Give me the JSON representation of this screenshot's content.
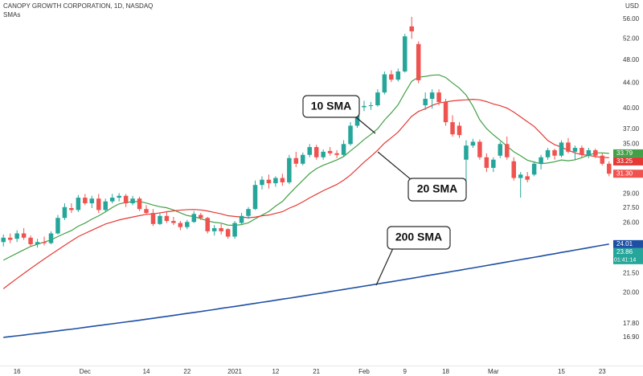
{
  "chart_data": {
    "type": "candlestick",
    "title": "CANOPY GROWTH CORPORATION, 1D, NASDAQ",
    "subtitle": "SMAs",
    "currency": "USD",
    "log_scale": true,
    "grid": false,
    "up_color": "#26a69a",
    "down_color": "#ef5350",
    "categories": [
      null,
      null,
      "16",
      null,
      null,
      null,
      null,
      null,
      null,
      null,
      null,
      null,
      "Dec",
      null,
      null,
      null,
      null,
      null,
      null,
      null,
      null,
      "14",
      null,
      null,
      null,
      null,
      null,
      "22",
      null,
      null,
      null,
      null,
      null,
      null,
      "2021",
      null,
      null,
      null,
      null,
      null,
      "12",
      null,
      null,
      null,
      null,
      null,
      "21",
      null,
      null,
      null,
      null,
      null,
      null,
      "Feb",
      null,
      null,
      null,
      null,
      null,
      "9",
      null,
      null,
      null,
      null,
      null,
      "18",
      null,
      null,
      null,
      null,
      null,
      null,
      "Mar",
      null,
      null,
      null,
      null,
      null,
      null,
      null,
      null,
      null,
      "15",
      null,
      null,
      null,
      null,
      null,
      "23",
      null
    ],
    "open": [
      24.2,
      24.6,
      24.5,
      25.0,
      24.6,
      24.0,
      24.2,
      24.1,
      25.0,
      26.5,
      27.5,
      27.3,
      28.6,
      28.0,
      28.5,
      27.3,
      28.2,
      28.6,
      28.8,
      28.0,
      28.5,
      27.4,
      27.0,
      25.9,
      26.7,
      26.2,
      26.0,
      25.6,
      26.1,
      26.8,
      26.5,
      25.2,
      25.5,
      25.4,
      24.7,
      26.0,
      26.7,
      27.4,
      30.0,
      30.6,
      30.2,
      30.8,
      30.3,
      33.2,
      32.5,
      33.6,
      34.6,
      33.3,
      34.1,
      33.8,
      33.6,
      35.0,
      37.5,
      40.2,
      40.4,
      40.5,
      42.5,
      45.5,
      44.6,
      46.0,
      54.5,
      51.0,
      40.5,
      41.5,
      42.5,
      41.0,
      38.0,
      37.5,
      33.0,
      34.8,
      35.3,
      33.3,
      32.0,
      33.5,
      35.0,
      32.8,
      30.8,
      31.0,
      31.2,
      32.5,
      33.3,
      34.2,
      33.5,
      35.2,
      34.0,
      34.5,
      33.6,
      34.2,
      33.5,
      32.5
    ],
    "high": [
      24.9,
      25.0,
      25.3,
      25.5,
      24.8,
      24.5,
      24.7,
      25.2,
      26.8,
      28.0,
      28.0,
      28.9,
      29.0,
      28.8,
      29.0,
      28.5,
      29.0,
      29.1,
      29.0,
      28.8,
      28.7,
      27.8,
      27.4,
      27.0,
      27.2,
      26.6,
      26.2,
      26.3,
      27.2,
      27.0,
      26.6,
      25.8,
      25.9,
      25.5,
      26.2,
      27.0,
      27.6,
      30.5,
      31.0,
      31.2,
      31.0,
      31.3,
      33.6,
      34.0,
      33.9,
      35.0,
      34.9,
      34.3,
      34.6,
      34.2,
      35.5,
      38.0,
      40.5,
      41.2,
      41.0,
      43.0,
      46.0,
      46.2,
      46.5,
      53.0,
      56.5,
      51.5,
      42.5,
      43.0,
      43.0,
      41.5,
      39.0,
      38.0,
      35.5,
      35.7,
      35.6,
      33.8,
      33.3,
      35.3,
      36.0,
      33.3,
      31.5,
      31.5,
      32.8,
      33.6,
      34.5,
      34.4,
      35.5,
      35.8,
      34.8,
      34.8,
      34.5,
      34.4,
      33.8,
      32.8
    ],
    "low": [
      23.8,
      24.1,
      24.2,
      24.4,
      23.8,
      23.7,
      23.9,
      24.0,
      24.9,
      26.3,
      27.0,
      27.1,
      27.8,
      27.5,
      27.0,
      27.1,
      28.0,
      28.2,
      27.6,
      27.8,
      27.2,
      26.8,
      25.7,
      25.8,
      26.0,
      25.8,
      25.3,
      25.4,
      26.0,
      26.3,
      25.0,
      24.8,
      24.9,
      24.5,
      24.5,
      25.8,
      26.4,
      27.3,
      29.5,
      29.6,
      29.8,
      29.9,
      30.1,
      32.1,
      32.3,
      33.3,
      33.0,
      33.0,
      33.5,
      33.2,
      33.4,
      34.8,
      37.2,
      39.6,
      39.8,
      40.3,
      42.2,
      44.2,
      44.3,
      45.8,
      52.0,
      44.0,
      39.8,
      40.0,
      40.5,
      37.5,
      36.0,
      35.8,
      29.8,
      34.5,
      33.0,
      31.5,
      31.5,
      33.2,
      33.0,
      30.5,
      28.6,
      30.3,
      31.0,
      31.8,
      33.0,
      33.0,
      33.3,
      33.8,
      33.0,
      33.3,
      33.2,
      33.2,
      32.3,
      31.0
    ],
    "close": [
      24.6,
      24.4,
      25.0,
      24.6,
      24.0,
      24.2,
      24.1,
      25.0,
      26.5,
      27.6,
      27.3,
      28.6,
      28.0,
      28.5,
      27.3,
      28.2,
      28.6,
      28.8,
      28.0,
      28.5,
      27.4,
      27.0,
      25.9,
      26.7,
      26.2,
      26.0,
      25.6,
      26.1,
      26.9,
      26.5,
      25.2,
      25.5,
      25.2,
      24.7,
      26.0,
      26.7,
      27.4,
      30.0,
      30.6,
      30.2,
      30.8,
      30.3,
      33.2,
      32.5,
      33.6,
      34.6,
      33.3,
      34.0,
      33.8,
      33.6,
      35.0,
      37.5,
      40.2,
      40.4,
      40.5,
      42.5,
      45.5,
      44.6,
      46.0,
      52.5,
      53.5,
      44.5,
      41.5,
      42.5,
      41.0,
      38.0,
      36.3,
      36.2,
      34.8,
      35.3,
      33.3,
      32.0,
      33.0,
      35.0,
      33.3,
      30.8,
      31.2,
      30.6,
      32.5,
      33.3,
      34.2,
      33.5,
      35.2,
      34.0,
      34.5,
      33.6,
      34.2,
      33.5,
      32.5,
      31.3
    ],
    "series": [
      {
        "name": "10 SMA",
        "color": "#43a047",
        "values": [
          22.6,
          22.9,
          23.2,
          23.5,
          23.8,
          24.0,
          24.2,
          24.4,
          24.7,
          25.0,
          25.27,
          25.69,
          25.99,
          26.38,
          26.71,
          27.11,
          27.56,
          27.94,
          28.09,
          28.18,
          28.19,
          28.03,
          27.82,
          27.64,
          27.53,
          27.31,
          27.01,
          26.74,
          26.63,
          26.43,
          26.21,
          26.06,
          25.99,
          25.79,
          25.77,
          25.84,
          26.02,
          26.41,
          26.78,
          27.15,
          27.71,
          28.19,
          28.99,
          29.77,
          30.53,
          31.32,
          31.91,
          32.31,
          32.63,
          32.97,
          33.39,
          34.11,
          34.81,
          35.6,
          36.29,
          37.08,
          38.3,
          39.36,
          40.58,
          42.47,
          44.32,
          45.02,
          45.15,
          45.36,
          45.41,
          44.96,
          44.04,
          43.2,
          42.08,
          40.36,
          38.34,
          37.09,
          36.24,
          35.49,
          34.72,
          34.0,
          33.49,
          32.93,
          32.7,
          32.5,
          32.59,
          32.74,
          32.96,
          32.86,
          32.98,
          33.26,
          33.56,
          33.85,
          33.85,
          33.79
        ]
      },
      {
        "name": "20 SMA",
        "color": "#e53935",
        "values": [
          20.3,
          20.7,
          21.1,
          21.5,
          21.9,
          22.3,
          22.7,
          23.1,
          23.5,
          23.9,
          24.3,
          24.7,
          25.0,
          25.3,
          25.6,
          25.9,
          26.1,
          26.3,
          26.45,
          26.59,
          26.73,
          26.86,
          26.91,
          27.01,
          27.12,
          27.21,
          27.29,
          27.34,
          27.36,
          27.31,
          27.2,
          27.05,
          26.91,
          26.72,
          26.65,
          26.58,
          26.52,
          26.58,
          26.71,
          26.79,
          26.96,
          27.13,
          27.49,
          27.78,
          28.15,
          28.58,
          28.97,
          29.36,
          29.71,
          30.06,
          30.55,
          31.15,
          31.9,
          32.69,
          33.41,
          34.2,
          35.11,
          35.84,
          36.61,
          37.72,
          38.86,
          39.57,
          39.98,
          40.48,
          40.85,
          41.02,
          41.17,
          41.28,
          41.33,
          41.42,
          41.33,
          41.06,
          40.7,
          40.43,
          40.07,
          39.48,
          38.77,
          38.07,
          37.39,
          36.43,
          35.47,
          34.92,
          34.6,
          34.18,
          33.85,
          33.63,
          33.53,
          33.39,
          33.28,
          33.25
        ]
      },
      {
        "name": "200 SMA",
        "color": "#1e4fa3",
        "values": [
          16.9,
          16.95,
          17.0,
          17.05,
          17.11,
          17.16,
          17.21,
          17.27,
          17.32,
          17.38,
          17.43,
          17.49,
          17.55,
          17.61,
          17.67,
          17.73,
          17.79,
          17.85,
          17.91,
          17.97,
          18.03,
          18.1,
          18.16,
          18.23,
          18.29,
          18.36,
          18.43,
          18.5,
          18.56,
          18.63,
          18.7,
          18.77,
          18.85,
          18.92,
          18.99,
          19.06,
          19.14,
          19.21,
          19.29,
          19.36,
          19.44,
          19.52,
          19.59,
          19.67,
          19.75,
          19.83,
          19.91,
          19.99,
          20.08,
          20.16,
          20.24,
          20.33,
          20.41,
          20.5,
          20.58,
          20.67,
          20.76,
          20.84,
          20.93,
          21.02,
          21.11,
          21.2,
          21.3,
          21.39,
          21.48,
          21.57,
          21.67,
          21.76,
          21.86,
          21.95,
          22.05,
          22.15,
          22.25,
          22.35,
          22.45,
          22.55,
          22.65,
          22.75,
          22.85,
          22.95,
          23.06,
          23.16,
          23.27,
          23.37,
          23.48,
          23.58,
          23.69,
          23.8,
          23.91,
          24.01
        ]
      }
    ],
    "ylim": [
      15.2,
      60.2
    ],
    "yticks": [
      {
        "value": 56,
        "label": "56.00"
      },
      {
        "value": 52,
        "label": "52.00"
      },
      {
        "value": 48,
        "label": "48.00"
      },
      {
        "value": 44,
        "label": "44.00"
      },
      {
        "value": 40,
        "label": "40.00"
      },
      {
        "value": 37,
        "label": "37.00"
      },
      {
        "value": 35,
        "label": "35.00"
      },
      {
        "value": 29,
        "label": "29.00"
      },
      {
        "value": 27.5,
        "label": "27.50"
      },
      {
        "value": 26,
        "label": "26.00"
      },
      {
        "value": 21.5,
        "label": "21.50"
      },
      {
        "value": 20,
        "label": "20.00"
      },
      {
        "value": 17.8,
        "label": "17.80"
      },
      {
        "value": 16.9,
        "label": "16.90"
      }
    ],
    "price_tags": [
      {
        "value": 33.79,
        "label": "33.79",
        "color": "#43a047"
      },
      {
        "value": 33.25,
        "label": "33.25",
        "color": "#e53935"
      },
      {
        "value": 31.3,
        "label": "31.30",
        "color": "#ef5350"
      },
      {
        "value": 24.01,
        "label": "24.01",
        "color": "#1e4fa3"
      },
      {
        "value": 23.86,
        "label": "23.86",
        "color": "#26a69a",
        "countdown": "01:41:14"
      }
    ]
  }
}
